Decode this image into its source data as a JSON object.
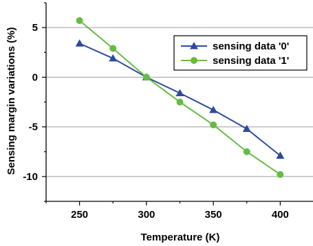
{
  "chart_data": {
    "type": "line",
    "title": "",
    "xlabel": "Temperature (K)",
    "ylabel": "Sensing margin variations (%)",
    "x": [
      250,
      275,
      300,
      325,
      350,
      375,
      400
    ],
    "xlim": [
      225,
      425
    ],
    "ylim": [
      -12.5,
      7.5
    ],
    "xticks": [
      "250",
      "300",
      "350",
      "400"
    ],
    "yticks": [
      "5",
      "0",
      "-5",
      "-10"
    ],
    "grid": "horizontal",
    "legend_position": "top-right",
    "series": [
      {
        "name": "sensing data '0'",
        "color": "#2e4a9e",
        "marker": "triangle",
        "values": [
          3.4,
          1.9,
          0.0,
          -1.6,
          -3.3,
          -5.2,
          -7.9
        ]
      },
      {
        "name": "sensing data '1'",
        "color": "#66bb44",
        "marker": "circle",
        "values": [
          5.7,
          2.9,
          0.0,
          -2.5,
          -4.8,
          -7.5,
          -9.8
        ]
      }
    ]
  }
}
